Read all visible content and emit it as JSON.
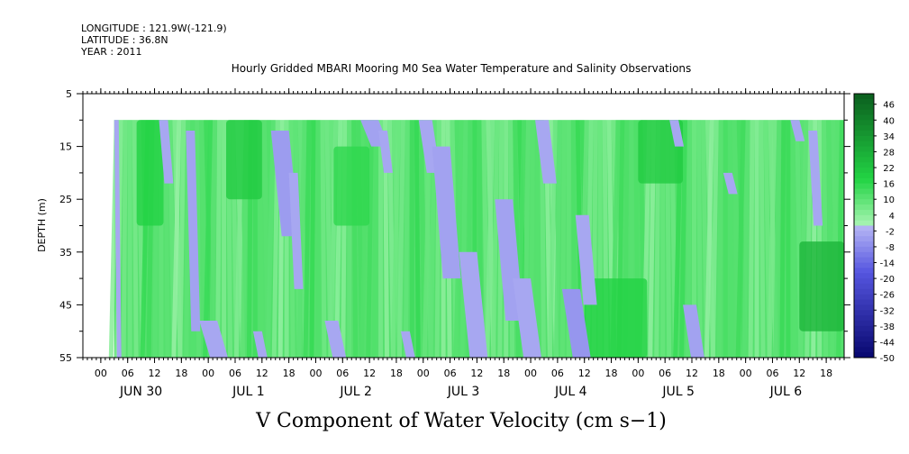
{
  "header": {
    "longitude": "LONGITUDE : 121.9W(-121.9)",
    "latitude": "LATITUDE : 36.8N",
    "year": "YEAR : 2011"
  },
  "title": "Hourly Gridded MBARI Mooring M0 Sea Water Temperature and Salinity Observations",
  "bottom_title": "V Component of Water Velocity (cm s−1)",
  "colors": {
    "positive_dark": "#0b5e1e",
    "positive_mid": "#22d444",
    "positive_light": "#aaf5b4",
    "negative_light": "#b8b8f5",
    "negative_mid": "#5656e0",
    "negative_dark": "#07076e"
  },
  "chart_data": {
    "type": "heatmap",
    "title": "Hourly Gridded MBARI Mooring M0 Sea Water Temperature and Salinity Observations",
    "xlabel": "",
    "ylabel": "DEPTH (m)",
    "y_range": [
      5,
      55
    ],
    "y_inverted": true,
    "y_ticks": [
      "5",
      "15",
      "25",
      "35",
      "45",
      "55"
    ],
    "data_depth_range": [
      10,
      55
    ],
    "x_start": "2011-06-29 20:00",
    "x_end": "2011-07-06 22:00",
    "data_start": "2011-06-30 03:00",
    "x_tick_labels": [
      "00",
      "06",
      "12",
      "18",
      "00",
      "06",
      "12",
      "18",
      "00",
      "06",
      "12",
      "18",
      "00",
      "06",
      "12",
      "18",
      "00",
      "06",
      "12",
      "18",
      "00",
      "06",
      "12",
      "18",
      "00",
      "06",
      "12",
      "18"
    ],
    "day_labels": [
      "JUN 30",
      "JUL  1",
      "JUL  2",
      "JUL  3",
      "JUL  4",
      "JUL  5",
      "JUL  6"
    ],
    "colorbar_labels": [
      "46",
      "40",
      "34",
      "28",
      "22",
      "16",
      "10",
      "4",
      "-2",
      "-8",
      "-14",
      "-20",
      "-26",
      "-32",
      "-38",
      "-44",
      "-50"
    ],
    "colorbar_range": [
      -50,
      50
    ],
    "negative_regions": [
      {
        "start": "2011-06-30 03:00",
        "end": "2011-06-30 04:00",
        "depth": [
          10,
          55
        ],
        "value": -3
      },
      {
        "start": "2011-06-30 13:00",
        "end": "2011-06-30 15:00",
        "depth": [
          10,
          22
        ],
        "value": -3
      },
      {
        "start": "2011-06-30 19:00",
        "end": "2011-06-30 21:00",
        "depth": [
          12,
          50
        ],
        "value": -4
      },
      {
        "start": "2011-06-30 22:00",
        "end": "2011-07-01 02:00",
        "depth": [
          48,
          55
        ],
        "value": -3
      },
      {
        "start": "2011-07-01 10:00",
        "end": "2011-07-01 12:00",
        "depth": [
          50,
          55
        ],
        "value": -3
      },
      {
        "start": "2011-07-01 14:00",
        "end": "2011-07-01 18:00",
        "depth": [
          12,
          32
        ],
        "value": -5
      },
      {
        "start": "2011-07-01 18:00",
        "end": "2011-07-01 20:00",
        "depth": [
          20,
          42
        ],
        "value": -3
      },
      {
        "start": "2011-07-02 02:00",
        "end": "2011-07-02 05:00",
        "depth": [
          48,
          55
        ],
        "value": -3
      },
      {
        "start": "2011-07-02 10:00",
        "end": "2011-07-02 14:00",
        "depth": [
          10,
          15
        ],
        "value": -4
      },
      {
        "start": "2011-07-02 14:00",
        "end": "2011-07-02 16:00",
        "depth": [
          12,
          20
        ],
        "value": -3
      },
      {
        "start": "2011-07-02 19:00",
        "end": "2011-07-02 21:00",
        "depth": [
          50,
          55
        ],
        "value": -3
      },
      {
        "start": "2011-07-02 23:00",
        "end": "2011-07-03 02:00",
        "depth": [
          10,
          20
        ],
        "value": -3
      },
      {
        "start": "2011-07-03 02:00",
        "end": "2011-07-03 06:00",
        "depth": [
          15,
          40
        ],
        "value": -4
      },
      {
        "start": "2011-07-03 08:00",
        "end": "2011-07-03 12:00",
        "depth": [
          35,
          55
        ],
        "value": -3
      },
      {
        "start": "2011-07-03 16:00",
        "end": "2011-07-03 20:00",
        "depth": [
          25,
          48
        ],
        "value": -4
      },
      {
        "start": "2011-07-03 20:00",
        "end": "2011-07-04 00:00",
        "depth": [
          40,
          55
        ],
        "value": -3
      },
      {
        "start": "2011-07-04 01:00",
        "end": "2011-07-04 04:00",
        "depth": [
          10,
          22
        ],
        "value": -3
      },
      {
        "start": "2011-07-04 07:00",
        "end": "2011-07-04 11:00",
        "depth": [
          42,
          55
        ],
        "value": -6
      },
      {
        "start": "2011-07-04 10:00",
        "end": "2011-07-04 13:00",
        "depth": [
          28,
          45
        ],
        "value": -3
      },
      {
        "start": "2011-07-05 07:00",
        "end": "2011-07-05 09:00",
        "depth": [
          10,
          15
        ],
        "value": -3
      },
      {
        "start": "2011-07-05 10:00",
        "end": "2011-07-05 13:00",
        "depth": [
          45,
          55
        ],
        "value": -4
      },
      {
        "start": "2011-07-05 19:00",
        "end": "2011-07-05 21:00",
        "depth": [
          20,
          24
        ],
        "value": -3
      },
      {
        "start": "2011-07-06 10:00",
        "end": "2011-07-06 12:00",
        "depth": [
          10,
          14
        ],
        "value": -3
      },
      {
        "start": "2011-07-06 14:00",
        "end": "2011-07-06 16:00",
        "depth": [
          12,
          30
        ],
        "value": -3
      }
    ],
    "strong_positive_regions": [
      {
        "start": "2011-06-30 08:00",
        "end": "2011-06-30 14:00",
        "depth": [
          10,
          30
        ],
        "value": 18
      },
      {
        "start": "2011-07-01 04:00",
        "end": "2011-07-01 12:00",
        "depth": [
          10,
          25
        ],
        "value": 20
      },
      {
        "start": "2011-07-02 04:00",
        "end": "2011-07-02 12:00",
        "depth": [
          15,
          30
        ],
        "value": 16
      },
      {
        "start": "2011-07-04 12:00",
        "end": "2011-07-05 02:00",
        "depth": [
          40,
          55
        ],
        "value": 18
      },
      {
        "start": "2011-07-05 00:00",
        "end": "2011-07-05 10:00",
        "depth": [
          10,
          22
        ],
        "value": 20
      },
      {
        "start": "2011-07-06 12:00",
        "end": "2011-07-06 22:00",
        "depth": [
          33,
          50
        ],
        "value": 26
      }
    ]
  }
}
